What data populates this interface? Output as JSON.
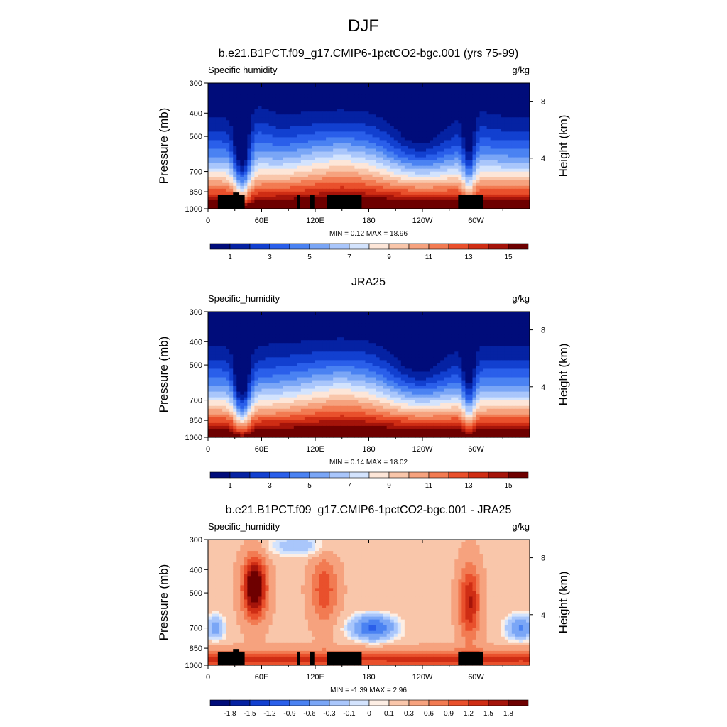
{
  "figure": {
    "title": "DJF"
  },
  "colors": {
    "main_scale": [
      "#000c7a",
      "#0522a3",
      "#1240d0",
      "#2a5fea",
      "#4a82f2",
      "#7aa6f6",
      "#a9c6fb",
      "#d3e3fd",
      "#fde6d8",
      "#f9c6aa",
      "#f6a27e",
      "#f27b52",
      "#e9502c",
      "#cf2d14",
      "#a5140a",
      "#6e0000"
    ],
    "diff_scale": [
      "#000c7a",
      "#0522a3",
      "#1240d0",
      "#2a5fea",
      "#4a82f2",
      "#7aa6f6",
      "#a9c6fb",
      "#d3e3fd",
      "#eef4fe",
      "#fdeee4",
      "#fde6d8",
      "#f9c6aa",
      "#f6a27e",
      "#f27b52",
      "#e9502c",
      "#cf2d14",
      "#a5140a",
      "#6e0000"
    ],
    "land_mask": "#000000"
  },
  "chart_data": [
    {
      "type": "heatmap",
      "title": "b.e21.B1PCT.f09_g17.CMIP6-1pctCO2-bgc.001 (yrs 75-99)",
      "variable": "Specific humidity",
      "units": "g/kg",
      "ylabel": "Pressure (mb)",
      "y2label": "Height (km)",
      "x_ticks": [
        "0",
        "60E",
        "120E",
        "180",
        "120W",
        "60W"
      ],
      "y_ticks": [
        "300",
        "400",
        "500",
        "700",
        "850",
        "1000"
      ],
      "y2_ticks": [
        "8",
        "4"
      ],
      "min_text": "MIN =   0.12  MAX =  18.96",
      "min": 0.12,
      "max": 18.96,
      "colorbar_labels": [
        "1",
        "3",
        "5",
        "7",
        "9",
        "11",
        "13",
        "15"
      ],
      "land_mask": true
    },
    {
      "type": "heatmap",
      "title": "JRA25",
      "variable": "Specific_humidity",
      "units": "g/kg",
      "ylabel": "Pressure (mb)",
      "y2label": "Height (km)",
      "x_ticks": [
        "0",
        "60E",
        "120E",
        "180",
        "120W",
        "60W"
      ],
      "y_ticks": [
        "300",
        "400",
        "500",
        "700",
        "850",
        "1000"
      ],
      "y2_ticks": [
        "8",
        "4"
      ],
      "min_text": "MIN =   0.14  MAX =  18.02",
      "min": 0.14,
      "max": 18.02,
      "colorbar_labels": [
        "1",
        "3",
        "5",
        "7",
        "9",
        "11",
        "13",
        "15"
      ],
      "land_mask": false
    },
    {
      "type": "heatmap",
      "title": "b.e21.B1PCT.f09_g17.CMIP6-1pctCO2-bgc.001 - JRA25",
      "variable": "Specific_humidity",
      "units": "g/kg",
      "ylabel": "Pressure (mb)",
      "y2label": "Height (km)",
      "x_ticks": [
        "0",
        "60E",
        "120E",
        "180",
        "120W",
        "60W"
      ],
      "y_ticks": [
        "300",
        "400",
        "500",
        "700",
        "850",
        "1000"
      ],
      "y2_ticks": [
        "8",
        "4"
      ],
      "min_text": "MIN =  -1.39  MAX =   2.96",
      "min": -1.39,
      "max": 2.96,
      "colorbar_labels": [
        "-1.8",
        "-1.5",
        "-1.2",
        "-0.9",
        "-0.6",
        "-0.3",
        "-0.1",
        "0",
        "0.1",
        "0.3",
        "0.6",
        "0.9",
        "1.2",
        "1.5",
        "1.8"
      ],
      "land_mask": true
    }
  ]
}
